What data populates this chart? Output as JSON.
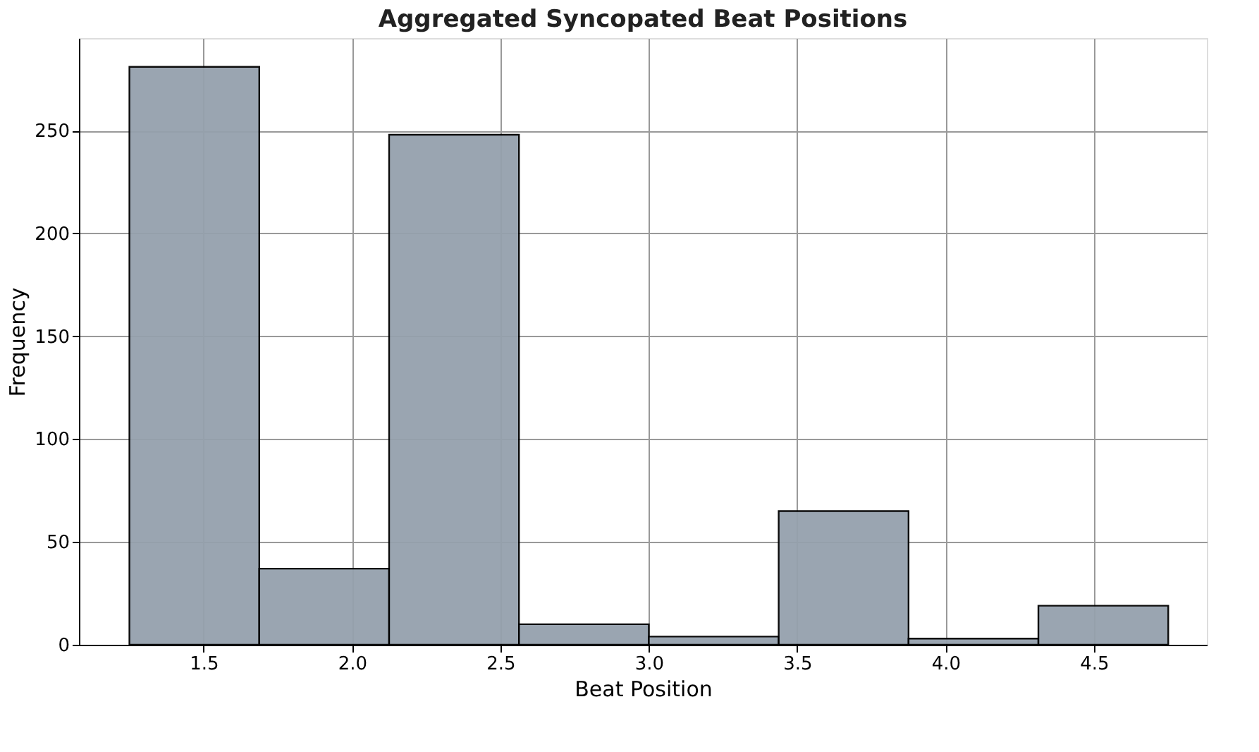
{
  "chart_data": {
    "type": "histogram",
    "title": "Aggregated Syncopated Beat Positions",
    "xlabel": "Beat Position",
    "ylabel": "Frequency",
    "bins": [
      1.25,
      1.6875,
      2.125,
      2.5625,
      3.0,
      3.4375,
      3.875,
      4.3125,
      4.75
    ],
    "values": [
      281,
      37,
      248,
      10,
      4,
      65,
      3,
      19
    ],
    "color": "#95a1ad",
    "xlim": [
      1.08,
      4.88
    ],
    "xticks": [
      {
        "value": 1.5,
        "label": "1.5"
      },
      {
        "value": 2.0,
        "label": "2.0"
      },
      {
        "value": 2.5,
        "label": "2.5"
      },
      {
        "value": 3.0,
        "label": "3.0"
      },
      {
        "value": 3.5,
        "label": "3.5"
      },
      {
        "value": 4.0,
        "label": "4.0"
      },
      {
        "value": 4.5,
        "label": "4.5"
      }
    ],
    "ylim": [
      0,
      295
    ],
    "yticks": [
      0,
      50,
      100,
      150,
      200,
      250
    ],
    "grid": true
  }
}
